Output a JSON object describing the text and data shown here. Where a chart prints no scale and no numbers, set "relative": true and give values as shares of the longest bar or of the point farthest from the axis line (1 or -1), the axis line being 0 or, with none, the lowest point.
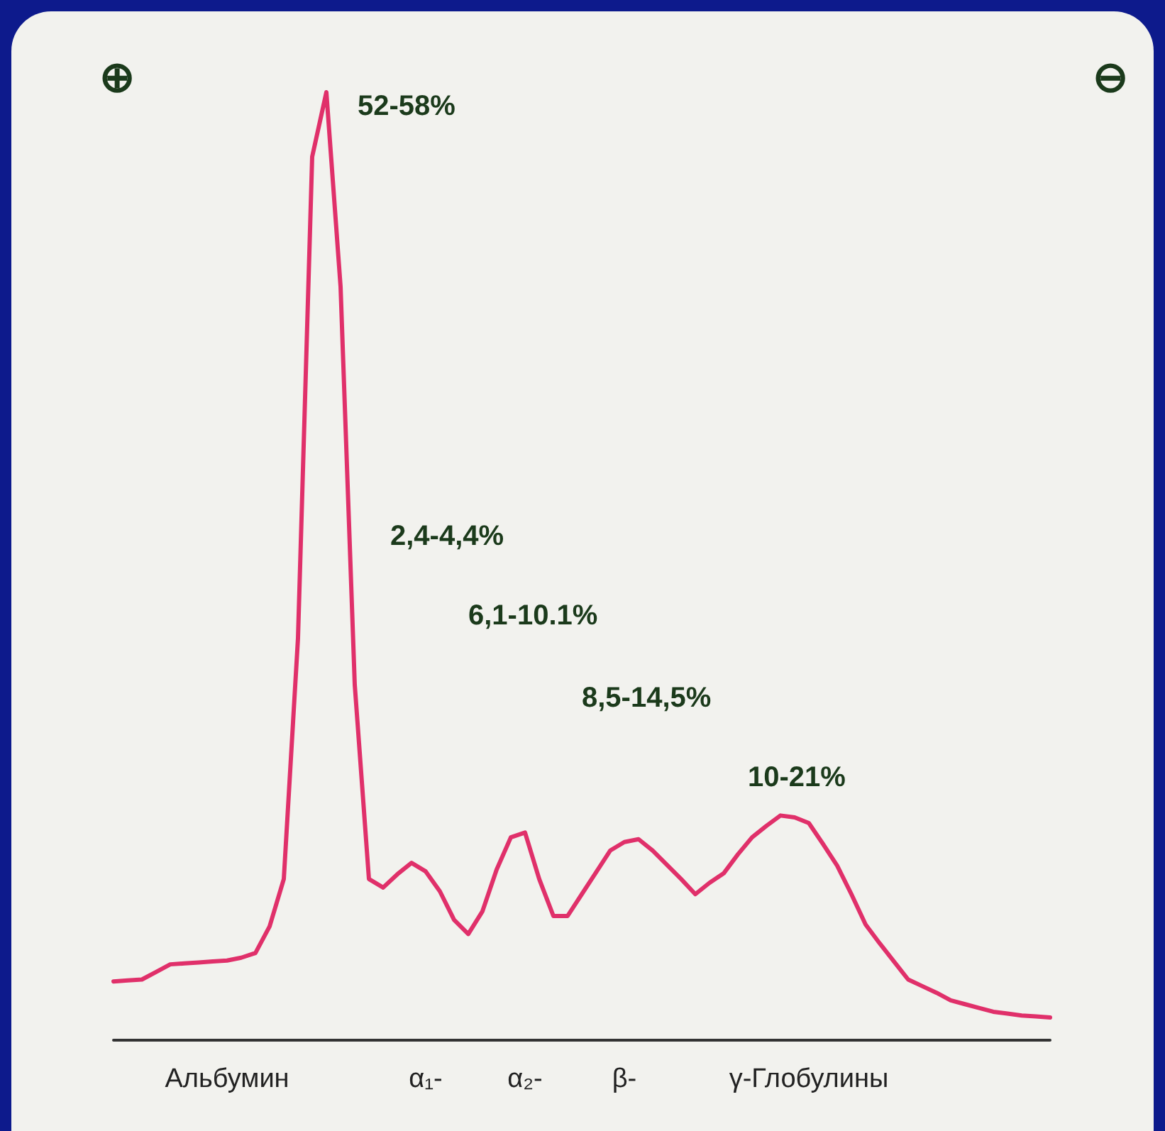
{
  "chart_data": {
    "type": "line",
    "relative": true,
    "grid": false,
    "marker": "none",
    "line_style": "solid",
    "categories": [
      null,
      null,
      null,
      null,
      null,
      null,
      null,
      null,
      "Альбумин",
      null,
      null,
      null,
      null,
      null,
      null,
      null,
      null,
      null,
      null,
      null,
      null,
      null,
      "α₁-",
      null,
      null,
      null,
      null,
      null,
      null,
      "α₂-",
      null,
      null,
      null,
      null,
      null,
      null,
      "β-",
      null,
      null,
      null,
      null,
      null,
      null,
      null,
      null,
      null,
      null,
      null,
      null,
      "γ-Глобулины",
      null,
      null,
      null,
      null,
      null,
      null,
      null,
      null,
      null,
      null,
      null,
      null,
      null,
      null,
      null,
      null,
      null
    ],
    "series": [
      {
        "color": "#e0306a",
        "values": [
          0.062,
          0.063,
          0.064,
          0.072,
          0.08,
          0.081,
          0.082,
          0.083,
          0.084,
          0.087,
          0.092,
          0.12,
          0.17,
          0.424,
          0.932,
          1,
          0.795,
          0.375,
          0.17,
          0.161,
          0.175,
          0.187,
          0.178,
          0.157,
          0.127,
          0.112,
          0.136,
          0.18,
          0.214,
          0.219,
          0.17,
          0.131,
          0.131,
          0.154,
          0.177,
          0.2,
          0.209,
          0.212,
          0.2,
          0.185,
          0.17,
          0.154,
          0.166,
          0.176,
          0.196,
          0.214,
          0.226,
          0.237,
          0.235,
          0.229,
          0.207,
          0.184,
          0.154,
          0.122,
          0.102,
          0.083,
          0.064,
          0.057,
          0.05,
          0.042,
          0.038,
          0.034,
          0.03,
          0.028,
          0.026,
          0.025,
          0.024
        ]
      }
    ],
    "annotations": [
      "⊕",
      "⊖",
      "52-58%",
      "2,4-4,4%",
      "6,1-10.1%",
      "8,5-14,5%",
      "10-21%"
    ]
  }
}
